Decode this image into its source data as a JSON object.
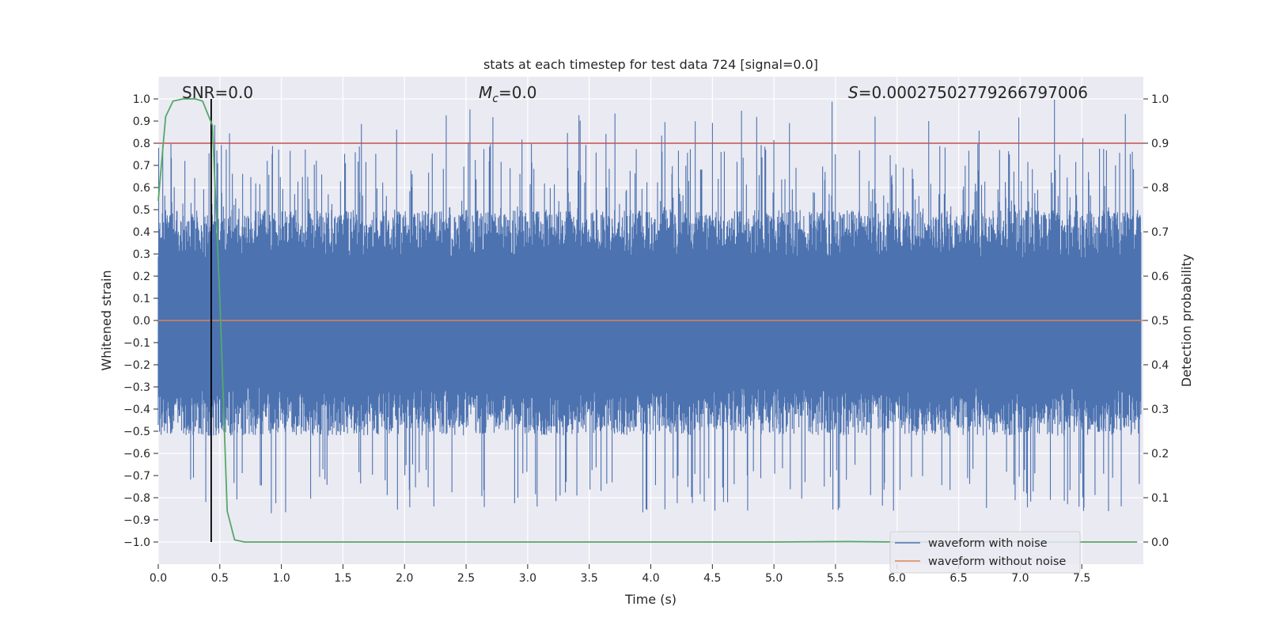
{
  "chart_data": {
    "type": "line",
    "title": "stats at each timestep for test data 724 [signal=0.0]",
    "xlabel": "Time (s)",
    "ylabel": "Whitened strain",
    "y2label": "Detection probability",
    "xlim": [
      0.0,
      8.0
    ],
    "ylim": [
      -1.1,
      1.1
    ],
    "y2lim": [
      -0.05,
      1.05
    ],
    "x_ticks": [
      "0.0",
      "0.5",
      "1.0",
      "1.5",
      "2.0",
      "2.5",
      "3.0",
      "3.5",
      "4.0",
      "4.5",
      "5.0",
      "5.5",
      "6.0",
      "6.5",
      "7.0",
      "7.5"
    ],
    "y_ticks": [
      "1.0",
      "0.9",
      "0.8",
      "0.7",
      "0.6",
      "0.5",
      "0.4",
      "0.3",
      "0.2",
      "0.1",
      "0.0",
      "-0.1",
      "-0.2",
      "-0.3",
      "-0.4",
      "-0.5",
      "-0.6",
      "-0.7",
      "-0.8",
      "-0.9",
      "-1.0"
    ],
    "y2_ticks": [
      "1.0",
      "0.9",
      "0.8",
      "0.7",
      "0.6",
      "0.5",
      "0.4",
      "0.3",
      "0.2",
      "0.1",
      "0.0"
    ],
    "grid": true,
    "annotations": {
      "snr": "SNR=0.0",
      "mc_symbol": "M",
      "mc_sub": "c",
      "mc_value": "=0.0",
      "s_symbol": "S",
      "s_value": "=0.00027502779266797006"
    },
    "threshold": {
      "axis": "right",
      "value": 0.9,
      "color": "#c44e52"
    },
    "vertical_marker": {
      "x": 0.43,
      "ymin": -1.0,
      "ymax": 1.0,
      "color": "#000000"
    },
    "series": [
      {
        "name": "waveform with noise",
        "axis": "left",
        "color": "#4c72b0",
        "description": "dense whitened noise trace sampled across 0-8 s, amplitude mostly within +/-0.5 with spikes near +/-1.0"
      },
      {
        "name": "waveform without noise",
        "axis": "left",
        "color": "#dd8452",
        "x": [
          0.0,
          8.0
        ],
        "y": [
          0.0,
          0.0
        ]
      },
      {
        "name": "detection probability",
        "axis": "right",
        "color": "#55a868",
        "x": [
          0.0,
          0.06,
          0.12,
          0.2,
          0.3,
          0.36,
          0.44,
          0.5,
          0.56,
          0.62,
          0.7,
          1.0,
          2.0,
          3.0,
          4.0,
          5.0,
          5.6,
          6.0,
          7.0,
          7.95
        ],
        "y": [
          0.77,
          0.96,
          0.995,
          1.0,
          1.0,
          0.995,
          0.94,
          0.55,
          0.07,
          0.005,
          0.0,
          0.0,
          0.0,
          0.0,
          0.0,
          0.0,
          0.001,
          0.0,
          0.0,
          0.0
        ]
      }
    ],
    "legend": {
      "position": "lower-right",
      "entries": [
        "waveform with noise",
        "waveform without noise"
      ]
    }
  }
}
